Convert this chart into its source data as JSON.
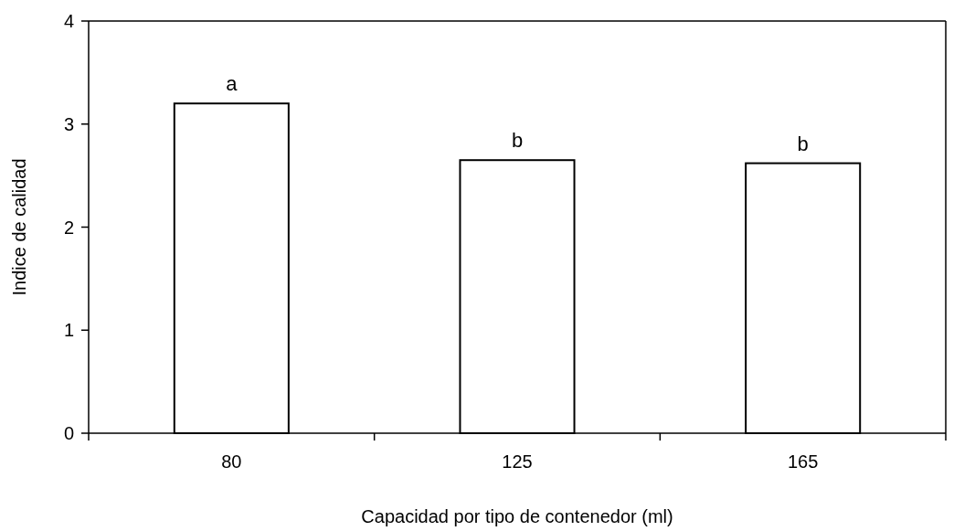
{
  "chart_data": {
    "type": "bar",
    "categories": [
      "80",
      "125",
      "165"
    ],
    "values": [
      3.2,
      2.65,
      2.62
    ],
    "color": "#ffffff",
    "xlabel": "Capacidad por  tipo de contenedor (ml)",
    "ylabel": "Indice de calidad",
    "ylim": [
      0,
      4
    ],
    "yticks": [
      0,
      1,
      2,
      3,
      4
    ],
    "grid": false,
    "annotations": [
      {
        "text": "a",
        "x": "80",
        "y": 3.2
      },
      {
        "text": "b",
        "x": "125",
        "y": 2.65
      },
      {
        "text": "b",
        "x": "165",
        "y": 2.62
      }
    ]
  }
}
